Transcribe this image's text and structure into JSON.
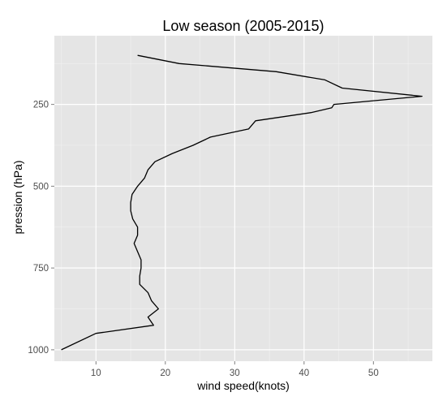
{
  "chart_data": {
    "type": "line",
    "title": "Low season (2005-2015)",
    "xlabel": "wind speed(knots)",
    "ylabel": "pression (hPa)",
    "xlim": [
      4,
      58.5
    ],
    "ylim": [
      40,
      1035
    ],
    "y_reversed": true,
    "grid": true,
    "x_ticks": [
      10,
      20,
      30,
      40,
      50
    ],
    "y_ticks": [
      250,
      500,
      750,
      1000
    ],
    "series": [
      {
        "color": "#000000",
        "points": [
          {
            "x": 16.0,
            "y": 100
          },
          {
            "x": 22.0,
            "y": 125
          },
          {
            "x": 36.0,
            "y": 150
          },
          {
            "x": 43.0,
            "y": 175
          },
          {
            "x": 45.5,
            "y": 200
          },
          {
            "x": 57.0,
            "y": 225
          },
          {
            "x": 44.3,
            "y": 250
          },
          {
            "x": 44.0,
            "y": 260
          },
          {
            "x": 41.0,
            "y": 275
          },
          {
            "x": 33.0,
            "y": 300
          },
          {
            "x": 32.0,
            "y": 325
          },
          {
            "x": 26.5,
            "y": 350
          },
          {
            "x": 24.0,
            "y": 375
          },
          {
            "x": 21.0,
            "y": 400
          },
          {
            "x": 18.5,
            "y": 425
          },
          {
            "x": 17.5,
            "y": 450
          },
          {
            "x": 17.0,
            "y": 475
          },
          {
            "x": 16.0,
            "y": 500
          },
          {
            "x": 15.2,
            "y": 525
          },
          {
            "x": 15.0,
            "y": 550
          },
          {
            "x": 15.0,
            "y": 575
          },
          {
            "x": 15.3,
            "y": 600
          },
          {
            "x": 16.0,
            "y": 625
          },
          {
            "x": 16.0,
            "y": 650
          },
          {
            "x": 15.5,
            "y": 675
          },
          {
            "x": 16.0,
            "y": 700
          },
          {
            "x": 16.5,
            "y": 725
          },
          {
            "x": 16.5,
            "y": 750
          },
          {
            "x": 16.3,
            "y": 775
          },
          {
            "x": 16.3,
            "y": 800
          },
          {
            "x": 17.5,
            "y": 825
          },
          {
            "x": 18.0,
            "y": 850
          },
          {
            "x": 19.0,
            "y": 875
          },
          {
            "x": 17.5,
            "y": 900
          },
          {
            "x": 18.3,
            "y": 925
          },
          {
            "x": 10.0,
            "y": 950
          },
          {
            "x": 5.0,
            "y": 1000
          }
        ]
      }
    ]
  }
}
